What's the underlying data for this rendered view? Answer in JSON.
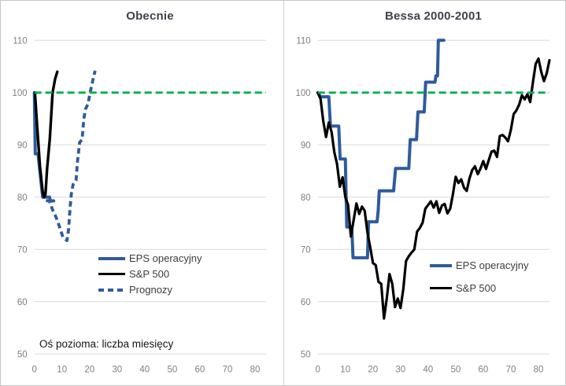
{
  "colors": {
    "eps_blue": "#2f5b9c",
    "sp500_black": "#000000",
    "baseline_green": "#00b050",
    "gridline": "#d9d9d9",
    "tick_text": "#7f7f7f",
    "title_text": "#3f434c",
    "legend_text": "#3d3d3d"
  },
  "chart_data": [
    {
      "type": "line",
      "title": "Obecnie",
      "axis_note": "Oś pozioma: liczba miesięcy",
      "xlim": [
        0,
        84
      ],
      "ylim": [
        50,
        110
      ],
      "x_ticks": [
        0,
        10,
        20,
        30,
        40,
        50,
        60,
        70,
        80
      ],
      "y_ticks": [
        50,
        60,
        70,
        80,
        90,
        100,
        110
      ],
      "grid": true,
      "legend_position": "inside-bottom-left",
      "baseline": {
        "value": 100,
        "color": "#00b050",
        "dash": "9 5",
        "width": 2.8
      },
      "series": [
        {
          "name": "EPS operacyjny",
          "color": "#2f5b9c",
          "width": 4,
          "dash": null,
          "points": [
            [
              0,
              100
            ],
            [
              0.3,
              88.3
            ],
            [
              1.3,
              88.3
            ],
            [
              3,
              80
            ],
            [
              5.5,
              80
            ],
            [
              5.8,
              79.3
            ],
            [
              7,
              79.3
            ]
          ]
        },
        {
          "name": "S&P 500",
          "color": "#000000",
          "width": 3.4,
          "dash": null,
          "points": [
            [
              0.2,
              100
            ],
            [
              1,
              93.5
            ],
            [
              2,
              86
            ],
            [
              3,
              81
            ],
            [
              3.5,
              80
            ],
            [
              4,
              80.5
            ],
            [
              4.6,
              85.4
            ],
            [
              5.6,
              91.2
            ],
            [
              6.6,
              100
            ],
            [
              7.5,
              102.6
            ],
            [
              8.3,
              104
            ]
          ]
        },
        {
          "name": "Prognozy",
          "color": "#2f5b9c",
          "width": 3.8,
          "dash": "7 4.5",
          "points": [
            [
              4.2,
              79.4
            ],
            [
              5.5,
              79.2
            ],
            [
              6.5,
              77.7
            ],
            [
              8,
              76
            ],
            [
              9,
              74.5
            ],
            [
              9.7,
              73.4
            ],
            [
              10.3,
              72.4
            ],
            [
              11.8,
              71.7
            ],
            [
              12.4,
              73.8
            ],
            [
              13,
              78.3
            ],
            [
              13.4,
              80.6
            ],
            [
              14,
              82.4
            ],
            [
              15.1,
              83.2
            ],
            [
              15.6,
              86.8
            ],
            [
              16.1,
              89
            ],
            [
              16.4,
              90.5
            ],
            [
              17.3,
              91
            ],
            [
              17.9,
              94.9
            ],
            [
              18.5,
              96.8
            ],
            [
              19.4,
              97.8
            ],
            [
              20.2,
              100
            ],
            [
              21.2,
              102.4
            ],
            [
              22,
              104.2
            ]
          ]
        }
      ]
    },
    {
      "type": "line",
      "title": "Bessa 2000-2001",
      "axis_note": "",
      "xlim": [
        0,
        84
      ],
      "ylim": [
        50,
        110
      ],
      "x_ticks": [
        0,
        10,
        20,
        30,
        40,
        50,
        60,
        70,
        80
      ],
      "y_ticks": [
        50,
        60,
        70,
        80,
        90,
        100,
        110
      ],
      "grid": true,
      "legend_position": "inside-right",
      "baseline": {
        "value": 100,
        "color": "#00b050",
        "dash": "9 5",
        "width": 2.8
      },
      "series": [
        {
          "name": "EPS operacyjny",
          "color": "#2f5b9c",
          "width": 4,
          "dash": null,
          "points": [
            [
              0,
              100
            ],
            [
              1,
              99.2
            ],
            [
              4,
              99.2
            ],
            [
              4.6,
              93.6
            ],
            [
              7.6,
              93.6
            ],
            [
              8.1,
              87.3
            ],
            [
              10,
              87.3
            ],
            [
              10.5,
              74.3
            ],
            [
              12.3,
              74.3
            ],
            [
              12.8,
              68.4
            ],
            [
              18,
              68.4
            ],
            [
              18.4,
              75.3
            ],
            [
              21.5,
              75.3
            ],
            [
              21.9,
              77.4
            ],
            [
              22.3,
              81.2
            ],
            [
              27.5,
              81.2
            ],
            [
              28.2,
              85.5
            ],
            [
              33,
              85.5
            ],
            [
              33.5,
              91
            ],
            [
              35.8,
              91
            ],
            [
              36.3,
              96.3
            ],
            [
              38.6,
              96.3
            ],
            [
              39.1,
              102
            ],
            [
              42.5,
              102
            ],
            [
              42.8,
              103.2
            ],
            [
              43.4,
              103.2
            ],
            [
              43.7,
              110
            ],
            [
              45.7,
              110
            ]
          ]
        },
        {
          "name": "S&P 500",
          "color": "#000000",
          "width": 3.2,
          "dash": null,
          "x_start": 0,
          "x_step": 1,
          "values": [
            100,
            98.8,
            94.5,
            91.5,
            94.3,
            92.5,
            88.6,
            86.3,
            82,
            83.8,
            80,
            78.5,
            72.5,
            75.6,
            78.8,
            76.8,
            78.2,
            77.4,
            73.2,
            70.4,
            67.4,
            67,
            63.8,
            63.4,
            56.8,
            60.6,
            65.3,
            63.4,
            59,
            60.6,
            58.8,
            62.4,
            67.8,
            68.7,
            69.4,
            70,
            73.4,
            74.1,
            75.1,
            77.8,
            78.5,
            79.2,
            78,
            79.2,
            77,
            78.4,
            78.7,
            76.9,
            77.8,
            80.6,
            83.9,
            82.7,
            83.4,
            81.8,
            81.2,
            83.6,
            85.2,
            85.9,
            84.4,
            85.5,
            86.9,
            85.4,
            87.1,
            88.7,
            88.9,
            87.7,
            91.7,
            91.9,
            91.4,
            90.7,
            92.9,
            95.9,
            96.6,
            97.7,
            99.5,
            98.7,
            99.7,
            98.2,
            102,
            105.5,
            106.5,
            104,
            102.2,
            103.7,
            106.2
          ]
        }
      ]
    }
  ]
}
